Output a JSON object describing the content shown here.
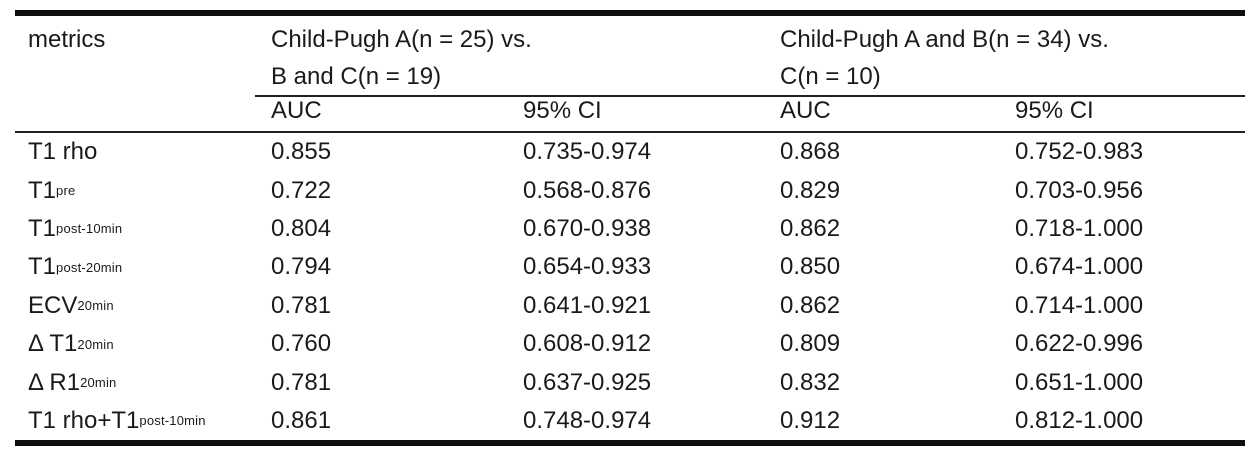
{
  "table": {
    "header": {
      "metrics": "metrics",
      "groups": [
        {
          "line1": "Child-Pugh A(n = 25) vs.",
          "line2": "B and C(n = 19)"
        },
        {
          "line1": "Child-Pugh A and B(n = 34) vs.",
          "line2": "C(n = 10)"
        }
      ],
      "subheaders": {
        "auc1": "AUC",
        "ci1": "95% CI",
        "auc2": "AUC",
        "ci2": "95% CI"
      }
    },
    "rows": [
      {
        "metric": "T1 rho",
        "sub": "",
        "auc1": "0.855",
        "ci1": "0.735-0.974",
        "auc2": "0.868",
        "ci2": "0.752-0.983"
      },
      {
        "metric": "T1",
        "sub": "pre",
        "auc1": "0.722",
        "ci1": "0.568-0.876",
        "auc2": "0.829",
        "ci2": "0.703-0.956"
      },
      {
        "metric": "T1",
        "sub": "post-10min",
        "auc1": "0.804",
        "ci1": "0.670-0.938",
        "auc2": "0.862",
        "ci2": "0.718-1.000"
      },
      {
        "metric": "T1",
        "sub": "post-20min",
        "auc1": "0.794",
        "ci1": "0.654-0.933",
        "auc2": "0.850",
        "ci2": "0.674-1.000"
      },
      {
        "metric": "ECV",
        "sub": "20min",
        "auc1": "0.781",
        "ci1": "0.641-0.921",
        "auc2": "0.862",
        "ci2": "0.714-1.000"
      },
      {
        "metric": "Δ T1",
        "sub": "20min",
        "auc1": "0.760",
        "ci1": "0.608-0.912",
        "auc2": "0.809",
        "ci2": "0.622-0.996"
      },
      {
        "metric": "Δ R1",
        "sub": "20min",
        "auc1": "0.781",
        "ci1": "0.637-0.925",
        "auc2": "0.832",
        "ci2": "0.651-1.000"
      },
      {
        "metric": "T1 rho+T1",
        "sub": "post-10min",
        "auc1": "0.861",
        "ci1": "0.748-0.974",
        "auc2": "0.912",
        "ci2": "0.812-1.000"
      }
    ]
  }
}
